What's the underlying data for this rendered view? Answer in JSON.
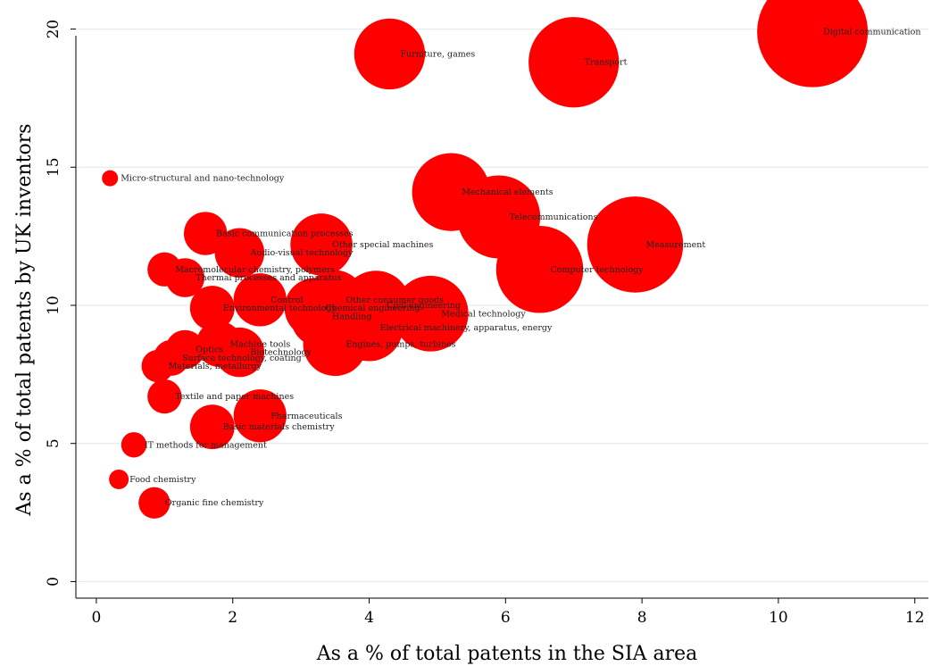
{
  "chart_data": {
    "type": "scatter",
    "title": "",
    "xlabel": "As a % of total patents in the SIA area",
    "ylabel": "As a % of total patents by UK inventors",
    "xlim": [
      -0.3,
      12.2
    ],
    "ylim": [
      -0.6,
      20.6
    ],
    "x_ticks": [
      0,
      2,
      4,
      6,
      8,
      10,
      12
    ],
    "y_ticks": [
      0,
      5,
      10,
      15,
      20
    ],
    "grid": "horizontal",
    "marker_color": "#ff0000",
    "points": [
      {
        "label": "Digital communication",
        "x": 10.5,
        "y": 19.9,
        "size": 10.5
      },
      {
        "label": "Transport",
        "x": 7.0,
        "y": 18.8,
        "size": 7.0
      },
      {
        "label": "Furniture, games",
        "x": 4.3,
        "y": 19.1,
        "size": 4.3
      },
      {
        "label": "Micro-structural and nano-technology",
        "x": 0.2,
        "y": 14.6,
        "size": 0.2
      },
      {
        "label": "Mechanical elements",
        "x": 5.2,
        "y": 14.1,
        "size": 5.2
      },
      {
        "label": "Telecommunications",
        "x": 5.9,
        "y": 13.2,
        "size": 5.9
      },
      {
        "label": "Measurement",
        "x": 7.9,
        "y": 12.2,
        "size": 7.9
      },
      {
        "label": "Basic communication processes",
        "x": 1.6,
        "y": 12.6,
        "size": 1.6
      },
      {
        "label": "Other special machines",
        "x": 3.3,
        "y": 12.2,
        "size": 3.3
      },
      {
        "label": "Audio-visual technology",
        "x": 2.1,
        "y": 11.9,
        "size": 2.1
      },
      {
        "label": "Computer technology",
        "x": 6.5,
        "y": 11.3,
        "size": 6.5
      },
      {
        "label": "Macromolecular chemistry, polymers",
        "x": 1.0,
        "y": 11.3,
        "size": 1.0
      },
      {
        "label": "Thermal processes and apparatus",
        "x": 1.3,
        "y": 11.0,
        "size": 1.3
      },
      {
        "label": "Control",
        "x": 2.4,
        "y": 10.2,
        "size": 2.4
      },
      {
        "label": "Other consumer goods",
        "x": 3.5,
        "y": 10.2,
        "size": 3.0
      },
      {
        "label": "Chemical engineering",
        "x": 3.2,
        "y": 9.9,
        "size": 3.1
      },
      {
        "label": "Environmental technology",
        "x": 1.7,
        "y": 9.9,
        "size": 1.7
      },
      {
        "label": "Civil engineering",
        "x": 4.1,
        "y": 10.0,
        "size": 4.1
      },
      {
        "label": "Medical technology",
        "x": 4.9,
        "y": 9.7,
        "size": 4.9
      },
      {
        "label": "Handling",
        "x": 3.3,
        "y": 9.6,
        "size": 3.3
      },
      {
        "label": "Electrical machinery, apparatus, energy",
        "x": 4.0,
        "y": 9.2,
        "size": 3.9
      },
      {
        "label": "Engines, pumps, turbines",
        "x": 3.5,
        "y": 8.6,
        "size": 3.5
      },
      {
        "label": "Machine tools",
        "x": 1.8,
        "y": 8.6,
        "size": 1.8
      },
      {
        "label": "Biotechnology",
        "x": 2.1,
        "y": 8.3,
        "size": 2.1
      },
      {
        "label": "Optics",
        "x": 1.3,
        "y": 8.4,
        "size": 1.3
      },
      {
        "label": "Surface technology, coating",
        "x": 1.1,
        "y": 8.1,
        "size": 1.1
      },
      {
        "label": "Materials, metallurgy",
        "x": 0.9,
        "y": 7.8,
        "size": 0.9
      },
      {
        "label": "Textile and paper machines",
        "x": 1.0,
        "y": 6.7,
        "size": 1.0
      },
      {
        "label": "Pharmaceuticals",
        "x": 2.4,
        "y": 6.0,
        "size": 2.4
      },
      {
        "label": "Basic materials chemistry",
        "x": 1.7,
        "y": 5.6,
        "size": 1.7
      },
      {
        "label": "IT methods for management",
        "x": 0.55,
        "y": 4.95,
        "size": 0.55
      },
      {
        "label": "Food chemistry",
        "x": 0.33,
        "y": 3.7,
        "size": 0.33
      },
      {
        "label": "Organic fine chemistry",
        "x": 0.85,
        "y": 2.85,
        "size": 0.85
      }
    ]
  }
}
